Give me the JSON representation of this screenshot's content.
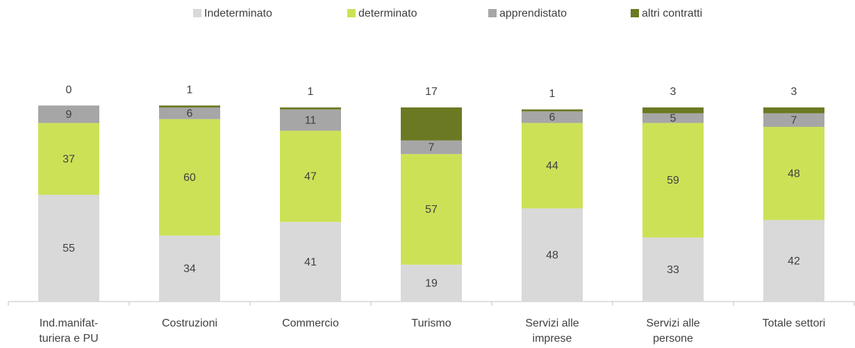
{
  "chart_data": {
    "type": "stacked_bar",
    "categories": [
      [
        "Ind.manifat-",
        "turiera e PU"
      ],
      [
        "Costruzioni"
      ],
      [
        "Commercio"
      ],
      [
        "Turismo"
      ],
      [
        "Servizi alle",
        "imprese"
      ],
      [
        "Servizi alle",
        "persone"
      ],
      [
        "Totale settori"
      ]
    ],
    "series": [
      {
        "name": "Indeterminato",
        "color": "#d9d9d9",
        "values": [
          55,
          34,
          41,
          19,
          48,
          33,
          42
        ]
      },
      {
        "name": "determinato",
        "color": "#cde157",
        "values": [
          37,
          60,
          47,
          57,
          44,
          59,
          48
        ]
      },
      {
        "name": "apprendistato",
        "color": "#a6a6a6",
        "values": [
          9,
          6,
          11,
          7,
          6,
          5,
          7
        ]
      },
      {
        "name": "altri contratti",
        "color": "#6b7a22",
        "values": [
          0,
          1,
          1,
          17,
          1,
          3,
          3
        ]
      }
    ],
    "ylim": [
      0,
      100
    ],
    "legend": "top"
  }
}
